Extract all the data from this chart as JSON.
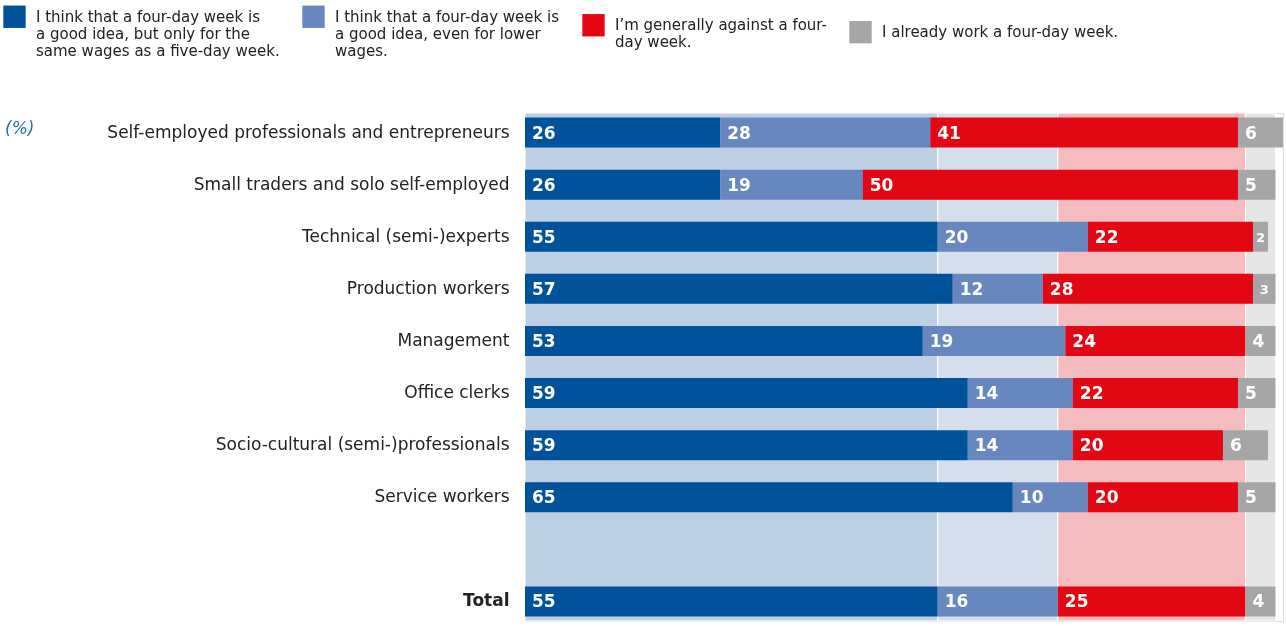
{
  "chart_data": {
    "type": "bar",
    "orientation": "horizontal",
    "stacked": true,
    "data_labels": true,
    "legend": "top",
    "tick_labels": "y",
    "xlim": [
      0,
      101
    ],
    "categories": [
      "Self-employed professionals and entrepreneurs",
      "Small traders and solo self-employed",
      "Technical (semi-)experts",
      "Production workers",
      "Management",
      "Office clerks",
      "Socio-cultural (semi-)professionals",
      "Service workers",
      null,
      "Total"
    ],
    "series": [
      {
        "name": "I think that a four-day week is a good idea, but only for the same wages as a five-day week.",
        "color": "#00529b",
        "values": [
          26,
          26,
          55,
          57,
          53,
          59,
          59,
          65,
          null,
          55
        ]
      },
      {
        "name": "I think that a four-day week is a good idea, even for lower wages.",
        "color": "#6688bf",
        "values": [
          28,
          19,
          20,
          12,
          19,
          14,
          14,
          10,
          null,
          16
        ]
      },
      {
        "name": "I’m generally against a four-day week.",
        "color": "#e30613",
        "values": [
          41,
          50,
          22,
          28,
          24,
          22,
          20,
          20,
          null,
          25
        ]
      },
      {
        "name": "I already work a four-day week.",
        "color": "#a6a6a6",
        "values": [
          6,
          5,
          2,
          3,
          4,
          5,
          6,
          5,
          null,
          4
        ]
      }
    ],
    "bands": [
      {
        "axis": "x",
        "from": 0,
        "to": 55,
        "color": "#bccfe3"
      },
      {
        "axis": "x",
        "from": 55,
        "to": 71,
        "color": "#d5dfeb"
      },
      {
        "axis": "x",
        "from": 71,
        "to": 96,
        "color": "#f5bcbf"
      },
      {
        "axis": "x",
        "from": 96,
        "to": 100,
        "color": "#e6e6e6"
      }
    ],
    "annotations": [
      "(%)"
    ]
  }
}
